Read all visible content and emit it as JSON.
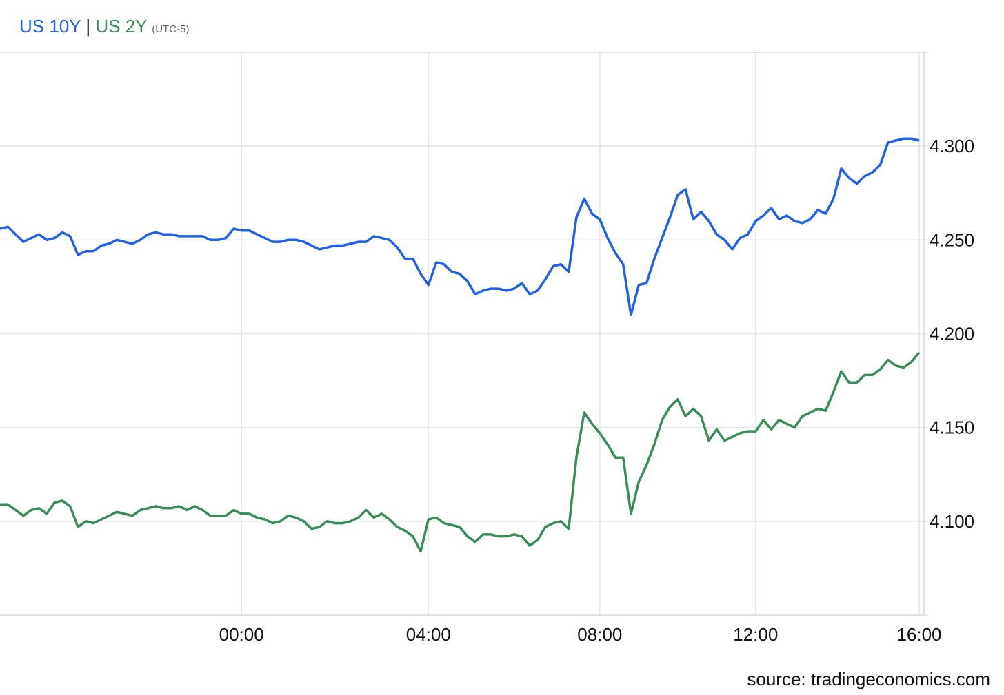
{
  "chart_data": {
    "type": "line",
    "timezone": "(UTC-5)",
    "legend_separator": "|",
    "source": "source: tradingeconomics.com",
    "categories": [
      null,
      null,
      null,
      null,
      null,
      null,
      null,
      null,
      null,
      null,
      null,
      null,
      null,
      null,
      null,
      null,
      null,
      null,
      null,
      null,
      null,
      null,
      null,
      null,
      null,
      null,
      null,
      null,
      null,
      null,
      null,
      "00:00",
      null,
      null,
      null,
      null,
      null,
      null,
      null,
      null,
      null,
      null,
      null,
      null,
      null,
      null,
      null,
      null,
      null,
      null,
      null,
      null,
      null,
      null,
      null,
      "04:00",
      null,
      null,
      null,
      null,
      null,
      null,
      null,
      null,
      null,
      null,
      null,
      null,
      null,
      null,
      null,
      null,
      null,
      null,
      null,
      null,
      null,
      "08:00",
      null,
      null,
      null,
      null,
      null,
      null,
      null,
      null,
      null,
      null,
      null,
      null,
      null,
      null,
      null,
      null,
      null,
      null,
      null,
      "12:00",
      null,
      null,
      null,
      null,
      null,
      null,
      null,
      null,
      null,
      null,
      null,
      null,
      null,
      null,
      null,
      null,
      null,
      null,
      null,
      null,
      "16:00"
    ],
    "series": [
      {
        "name": "US 10Y",
        "color": "#2160e8",
        "values": [
          4.256,
          4.257,
          4.253,
          4.249,
          4.251,
          4.253,
          4.25,
          4.251,
          4.254,
          4.252,
          4.242,
          4.244,
          4.244,
          4.247,
          4.248,
          4.25,
          4.249,
          4.248,
          4.25,
          4.253,
          4.254,
          4.253,
          4.253,
          4.252,
          4.252,
          4.252,
          4.252,
          4.25,
          4.25,
          4.251,
          4.256,
          4.255,
          4.255,
          4.253,
          4.251,
          4.249,
          4.249,
          4.25,
          4.25,
          4.249,
          4.247,
          4.245,
          4.246,
          4.247,
          4.247,
          4.248,
          4.249,
          4.249,
          4.252,
          4.251,
          4.25,
          4.246,
          4.24,
          4.24,
          4.232,
          4.226,
          4.238,
          4.237,
          4.233,
          4.232,
          4.228,
          4.221,
          4.223,
          4.224,
          4.224,
          4.223,
          4.224,
          4.227,
          4.221,
          4.223,
          4.229,
          4.236,
          4.237,
          4.233,
          4.262,
          4.272,
          4.264,
          4.261,
          4.251,
          4.243,
          4.237,
          4.21,
          4.226,
          4.227,
          4.24,
          4.251,
          4.262,
          4.274,
          4.277,
          4.261,
          4.265,
          4.26,
          4.253,
          4.25,
          4.245,
          4.251,
          4.253,
          4.26,
          4.263,
          4.267,
          4.261,
          4.263,
          4.26,
          4.259,
          4.261,
          4.266,
          4.264,
          4.272,
          4.288,
          4.283,
          4.28,
          4.284,
          4.286,
          4.29,
          4.302,
          4.303,
          4.304,
          4.304,
          4.303
        ]
      },
      {
        "name": "US 2Y",
        "color": "#3a8c58",
        "values": [
          4.109,
          4.109,
          4.106,
          4.103,
          4.106,
          4.107,
          4.104,
          4.11,
          4.111,
          4.108,
          4.097,
          4.1,
          4.099,
          4.101,
          4.103,
          4.105,
          4.104,
          4.103,
          4.106,
          4.107,
          4.108,
          4.107,
          4.107,
          4.108,
          4.106,
          4.108,
          4.106,
          4.103,
          4.103,
          4.103,
          4.106,
          4.104,
          4.104,
          4.102,
          4.101,
          4.099,
          4.1,
          4.103,
          4.102,
          4.1,
          4.096,
          4.097,
          4.1,
          4.099,
          4.099,
          4.1,
          4.102,
          4.106,
          4.102,
          4.104,
          4.101,
          4.097,
          4.095,
          4.092,
          4.084,
          4.101,
          4.102,
          4.099,
          4.098,
          4.097,
          4.092,
          4.089,
          4.093,
          4.093,
          4.092,
          4.092,
          4.093,
          4.092,
          4.087,
          4.09,
          4.097,
          4.099,
          4.1,
          4.096,
          4.134,
          4.158,
          4.152,
          4.147,
          4.141,
          4.134,
          4.134,
          4.104,
          4.121,
          4.13,
          4.141,
          4.154,
          4.161,
          4.165,
          4.156,
          4.16,
          4.156,
          4.143,
          4.149,
          4.143,
          4.145,
          4.147,
          4.148,
          4.148,
          4.154,
          4.149,
          4.154,
          4.152,
          4.15,
          4.156,
          4.158,
          4.16,
          4.159,
          4.169,
          4.18,
          4.174,
          4.174,
          4.178,
          4.178,
          4.181,
          4.186,
          4.183,
          4.182,
          4.185,
          4.19
        ]
      }
    ],
    "ylim": [
      4.05,
      4.35
    ],
    "yticks": [
      {
        "value": 4.1,
        "label": "4.100"
      },
      {
        "value": 4.15,
        "label": "4.150"
      },
      {
        "value": 4.2,
        "label": "4.200"
      },
      {
        "value": 4.25,
        "label": "4.250"
      },
      {
        "value": 4.3,
        "label": "4.300"
      }
    ],
    "grid": true
  }
}
